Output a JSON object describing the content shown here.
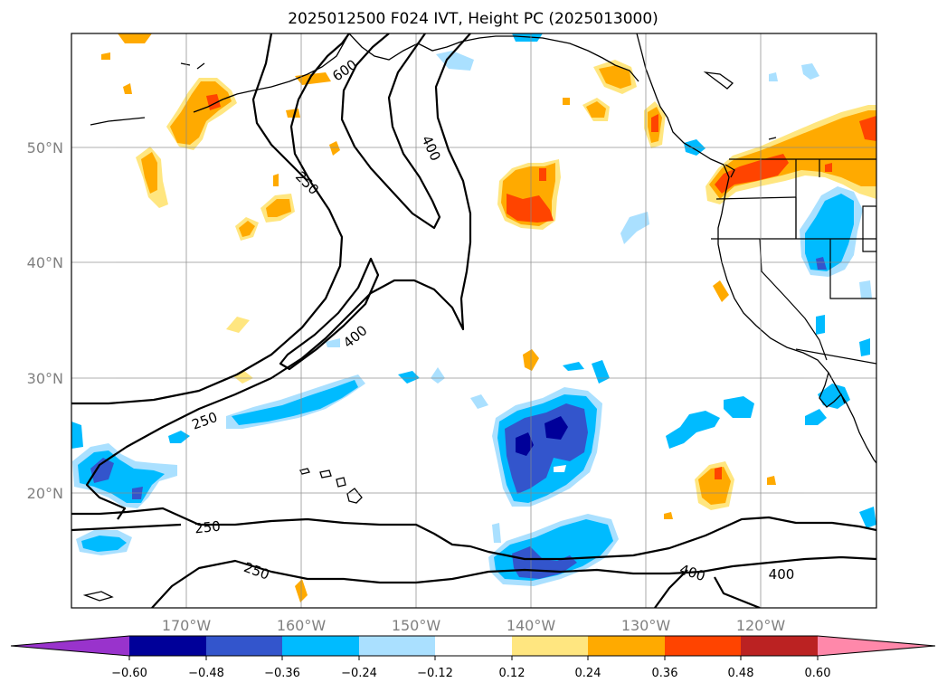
{
  "title": "2025012500 F024 IVT, Height PC (2025013000)",
  "lat_labels": [
    "50°N",
    "40°N",
    "30°N",
    "20°N"
  ],
  "lon_labels": [
    "170°W",
    "160°W",
    "150°W",
    "140°W",
    "130°W",
    "120°W"
  ],
  "contour_labels": [
    "250",
    "600",
    "400",
    "250",
    "400",
    "250",
    "250",
    "400",
    "400"
  ],
  "colorbar": {
    "ticks": [
      "−0.60",
      "−0.48",
      "−0.36",
      "−0.24",
      "−0.12",
      "0.12",
      "0.24",
      "0.36",
      "0.48",
      "0.60"
    ],
    "colors": [
      "#9933cc",
      "#000099",
      "#3355cc",
      "#00bbff",
      "#aae0ff",
      "#ffffff",
      "#ffe680",
      "#ffaa00",
      "#ff4400",
      "#bb2222",
      "#ff88aa"
    ]
  },
  "colors": {
    "neg_light": "#aae0ff",
    "neg_mid": "#00bbff",
    "neg_strong": "#3355cc",
    "neg_max": "#000099",
    "pos_light": "#ffe680",
    "pos_mid": "#ffaa00",
    "pos_strong": "#ff4400"
  }
}
